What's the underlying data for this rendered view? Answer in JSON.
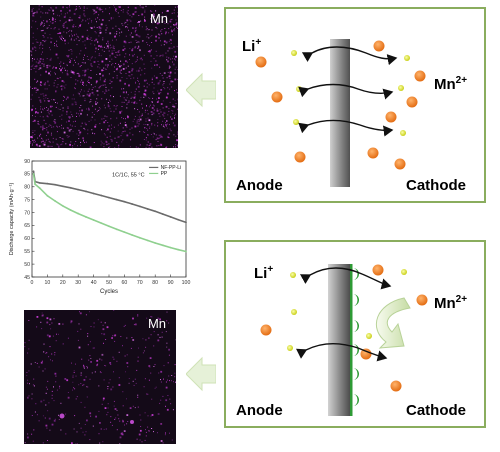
{
  "top_image": {
    "label": "Mn"
  },
  "bottom_image": {
    "label": "Mn"
  },
  "top_panel": {
    "anode_label": "Anode",
    "cathode_label": "Cathode",
    "li_label": "Li",
    "li_charge": "+",
    "mn_label": "Mn",
    "mn_charge": "2+"
  },
  "bottom_panel": {
    "anode_label": "Anode",
    "cathode_label": "Cathode",
    "li_label": "Li",
    "li_charge": "+",
    "mn_label": "Mn",
    "mn_charge": "2+"
  },
  "colors": {
    "panel_border": "#8aad5e",
    "li_ion": "#e8ef3a",
    "mn_ion": "#f08a2c",
    "trap": "#2e9a35",
    "arrow_fill": "#e6f1d8"
  },
  "chart_data": {
    "type": "line",
    "title": "1C/1C, 55 °C",
    "xlabel": "Cycles",
    "ylabel": "Discharge capacity (mAh·g⁻¹)",
    "xlim": [
      0,
      100
    ],
    "ylim": [
      45,
      90
    ],
    "xticks": [
      0,
      10,
      20,
      30,
      40,
      50,
      60,
      70,
      80,
      90,
      100
    ],
    "yticks": [
      45,
      50,
      55,
      60,
      65,
      70,
      75,
      80,
      85,
      90
    ],
    "legend_position": "top-right",
    "series": [
      {
        "name": "NF-PP-Li",
        "color": "#6b6b6b",
        "x": [
          1,
          2,
          5,
          10,
          15,
          20,
          25,
          30,
          35,
          40,
          45,
          50,
          55,
          60,
          65,
          70,
          75,
          80,
          85,
          90,
          95,
          100
        ],
        "y": [
          86,
          82,
          81.5,
          81.2,
          80.8,
          80.2,
          79.6,
          78.9,
          78.2,
          77.4,
          76.6,
          75.8,
          75,
          74.2,
          73.3,
          72.4,
          71.4,
          70.5,
          69.4,
          68.3,
          67.2,
          66.2
        ]
      },
      {
        "name": "PP",
        "color": "#8fd08f",
        "x": [
          1,
          2,
          5,
          10,
          15,
          20,
          25,
          30,
          35,
          40,
          45,
          50,
          55,
          60,
          65,
          70,
          75,
          80,
          85,
          90,
          95,
          100
        ],
        "y": [
          85,
          81,
          79.5,
          76.5,
          74.5,
          72.6,
          71,
          69.6,
          68.3,
          67.1,
          65.9,
          64.7,
          63.5,
          62.4,
          61.3,
          60.2,
          59.2,
          58.2,
          57.3,
          56.4,
          55.6,
          54.9
        ]
      }
    ]
  }
}
